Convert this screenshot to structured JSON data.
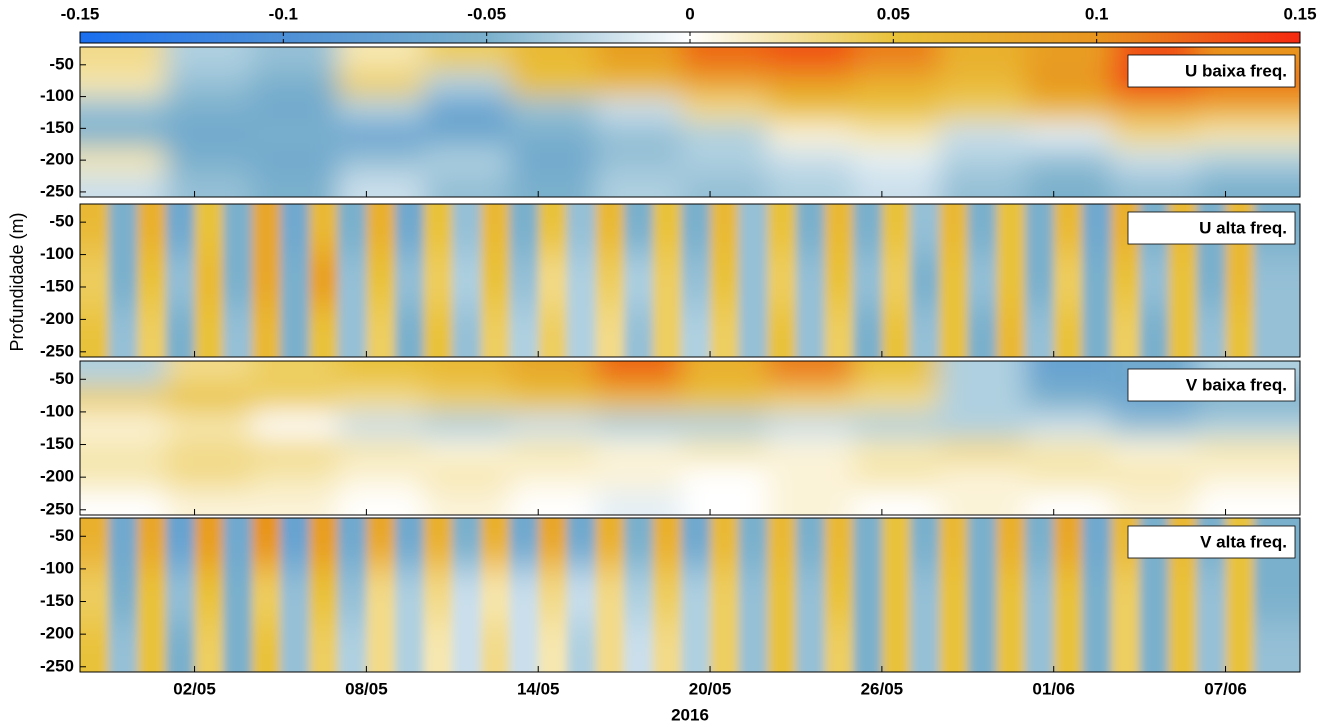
{
  "chart_data": {
    "type": "heatmap",
    "ylabel": "Profundidade (m)",
    "xlabel": "2016",
    "colorbar": {
      "lim": [
        -0.15,
        0.15
      ],
      "ticks": [
        -0.15,
        -0.1,
        -0.05,
        0,
        0.05,
        0.1,
        0.15
      ],
      "colors": [
        "#1a6ff0",
        "#4d8fd6",
        "#7ab0cc",
        "#ffffff",
        "#e9c23a",
        "#e8951f",
        "#f5280f"
      ]
    },
    "xlim": [
      119,
      161.6
    ],
    "xticks": [
      {
        "value": 123,
        "label": "02/05"
      },
      {
        "value": 129,
        "label": "08/05"
      },
      {
        "value": 135,
        "label": "14/05"
      },
      {
        "value": 141,
        "label": "20/05"
      },
      {
        "value": 147,
        "label": "26/05"
      },
      {
        "value": 153,
        "label": "01/06"
      },
      {
        "value": 159,
        "label": "07/06"
      }
    ],
    "ylim": [
      -258,
      -22
    ],
    "yticks": [
      -50,
      -100,
      -150,
      -200,
      -250
    ],
    "panels": [
      {
        "label": "U baixa freq.",
        "x": [
          120.5,
          123.5,
          126.5,
          129.5,
          132.5,
          135.5,
          138.5,
          141.5,
          144.5,
          147.5,
          150.5,
          153.5,
          156.5,
          159.5
        ],
        "y": [
          -40,
          -80,
          -120,
          -160,
          -200,
          -240
        ],
        "z": [
          [
            0.03,
            -0.03,
            -0.04,
            0.02,
            0.04,
            0.06,
            0.09,
            0.12,
            0.13,
            0.11,
            0.07,
            0.09,
            0.13,
            0.1
          ],
          [
            0.02,
            -0.04,
            -0.05,
            0.04,
            -0.03,
            0.05,
            0.06,
            0.08,
            0.09,
            0.07,
            0.06,
            0.1,
            0.14,
            0.12
          ],
          [
            -0.04,
            -0.05,
            -0.06,
            -0.03,
            -0.07,
            -0.04,
            -0.02,
            0.03,
            0.05,
            0.05,
            0.04,
            0.06,
            0.08,
            0.07
          ],
          [
            -0.05,
            -0.06,
            -0.05,
            -0.07,
            -0.06,
            -0.05,
            -0.04,
            -0.03,
            0.01,
            0.02,
            -0.02,
            -0.01,
            0.03,
            0.02
          ],
          [
            0.02,
            -0.05,
            -0.06,
            -0.04,
            -0.03,
            -0.06,
            -0.04,
            -0.03,
            -0.02,
            -0.01,
            -0.03,
            -0.04,
            -0.02,
            -0.03
          ],
          [
            -0.02,
            -0.04,
            -0.05,
            -0.02,
            -0.04,
            -0.05,
            -0.03,
            -0.04,
            -0.03,
            -0.02,
            -0.04,
            -0.05,
            -0.04,
            -0.05
          ]
        ]
      },
      {
        "label": "U alta freq.",
        "x": [
          119.5,
          120.5,
          121.5,
          122.5,
          123.5,
          124.5,
          125.5,
          126.5,
          127.5,
          128.5,
          129.5,
          130.5,
          131.5,
          132.5,
          133.5,
          134.5,
          135.5,
          136.5,
          137.5,
          138.5,
          139.5,
          140.5,
          141.5,
          142.5,
          143.5,
          144.5,
          145.5,
          146.5,
          147.5,
          148.5,
          149.5,
          150.5,
          151.5,
          152.5,
          153.5,
          154.5,
          155.5,
          156.5,
          157.5,
          158.5,
          159.5,
          160.5
        ],
        "y": [
          -60,
          -140,
          -220
        ],
        "z": [
          [
            0.06,
            -0.05,
            0.07,
            -0.06,
            0.05,
            -0.05,
            0.08,
            -0.06,
            0.06,
            -0.05,
            0.07,
            -0.06,
            0.05,
            -0.04,
            0.06,
            -0.05,
            0.05,
            -0.04,
            0.06,
            -0.05,
            0.05,
            -0.05,
            0.06,
            -0.04,
            0.05,
            -0.05,
            0.06,
            -0.05,
            0.05,
            -0.04,
            0.06,
            -0.05,
            0.05,
            -0.05,
            0.06,
            -0.06,
            0.07,
            -0.05,
            0.06,
            -0.05,
            0.06,
            -0.05
          ],
          [
            0.04,
            -0.05,
            0.05,
            -0.04,
            0.06,
            -0.05,
            0.08,
            -0.05,
            0.09,
            -0.04,
            0.05,
            -0.04,
            0.04,
            -0.03,
            0.05,
            -0.04,
            0.03,
            -0.03,
            0.04,
            -0.03,
            0.04,
            -0.04,
            0.05,
            -0.04,
            0.04,
            -0.04,
            0.05,
            -0.04,
            0.04,
            -0.05,
            0.05,
            -0.04,
            0.05,
            -0.05,
            0.04,
            -0.05,
            0.05,
            -0.04,
            0.05,
            -0.05,
            0.06,
            -0.04
          ],
          [
            0.05,
            -0.04,
            0.04,
            -0.05,
            0.05,
            -0.04,
            0.06,
            -0.05,
            0.05,
            -0.04,
            0.04,
            -0.05,
            0.05,
            -0.04,
            0.04,
            -0.03,
            0.04,
            -0.03,
            0.03,
            -0.04,
            0.04,
            -0.03,
            0.04,
            -0.04,
            0.05,
            -0.04,
            0.04,
            -0.05,
            0.05,
            -0.04,
            0.05,
            -0.05,
            0.06,
            -0.04,
            0.05,
            -0.05,
            0.04,
            -0.05,
            0.05,
            -0.04,
            0.05,
            -0.04
          ]
        ]
      },
      {
        "label": "V baixa freq.",
        "x": [
          120.5,
          123.5,
          126.5,
          129.5,
          132.5,
          135.5,
          138.5,
          141.5,
          144.5,
          147.5,
          150.5,
          153.5,
          156.5,
          159.5
        ],
        "y": [
          -40,
          -80,
          -120,
          -160,
          -200,
          -240
        ],
        "z": [
          [
            -0.03,
            0.03,
            0.04,
            0.05,
            0.06,
            0.08,
            0.12,
            0.07,
            0.11,
            0.05,
            -0.03,
            -0.07,
            -0.06,
            -0.03
          ],
          [
            0.04,
            0.05,
            0.04,
            0.03,
            0.04,
            0.05,
            0.06,
            0.05,
            0.04,
            0.03,
            -0.03,
            -0.05,
            -0.07,
            -0.05
          ],
          [
            0.01,
            0.02,
            0,
            -0.02,
            -0.03,
            -0.02,
            -0.03,
            -0.03,
            -0.02,
            -0.03,
            -0.03,
            -0.02,
            -0.04,
            -0.03
          ],
          [
            0.02,
            0.03,
            0.03,
            0.02,
            0.01,
            0.02,
            0.01,
            0.02,
            0.01,
            0.02,
            0.03,
            0.02,
            0.01,
            0.02
          ],
          [
            0.02,
            0.03,
            0.02,
            0.01,
            0.02,
            0.01,
            0.01,
            0,
            0.01,
            0.02,
            0.01,
            0.02,
            0.02,
            0.01
          ],
          [
            0,
            0.01,
            0.01,
            0,
            0.01,
            0,
            -0.01,
            0,
            0.01,
            0,
            0.01,
            0,
            0.01,
            0
          ]
        ]
      },
      {
        "label": "V alta freq.",
        "x": [
          119.5,
          120.5,
          121.5,
          122.5,
          123.5,
          124.5,
          125.5,
          126.5,
          127.5,
          128.5,
          129.5,
          130.5,
          131.5,
          132.5,
          133.5,
          134.5,
          135.5,
          136.5,
          137.5,
          138.5,
          139.5,
          140.5,
          141.5,
          142.5,
          143.5,
          144.5,
          145.5,
          146.5,
          147.5,
          148.5,
          149.5,
          150.5,
          151.5,
          152.5,
          153.5,
          154.5,
          155.5,
          156.5,
          157.5,
          158.5,
          159.5,
          160.5
        ],
        "y": [
          -60,
          -140,
          -220
        ],
        "z": [
          [
            0.07,
            -0.06,
            0.08,
            -0.07,
            0.09,
            -0.06,
            0.1,
            -0.07,
            0.09,
            -0.06,
            0.08,
            -0.06,
            0.07,
            -0.05,
            0.07,
            -0.06,
            0.08,
            -0.06,
            0.07,
            -0.05,
            0.07,
            -0.06,
            0.06,
            -0.05,
            0.06,
            -0.05,
            0.06,
            -0.05,
            0.05,
            -0.05,
            0.06,
            -0.05,
            0.07,
            -0.05,
            0.08,
            -0.06,
            0.06,
            -0.05,
            0.06,
            -0.05,
            0.05,
            -0.05
          ],
          [
            0.04,
            -0.05,
            0.05,
            -0.04,
            0.05,
            -0.05,
            0.04,
            -0.04,
            0.05,
            -0.04,
            0.03,
            -0.03,
            0.03,
            -0.02,
            0.02,
            -0.02,
            0.03,
            -0.02,
            0.03,
            -0.03,
            0.04,
            -0.03,
            0.04,
            -0.04,
            0.05,
            -0.04,
            0.05,
            -0.05,
            0.05,
            -0.04,
            0.05,
            -0.05,
            0.05,
            -0.04,
            0.05,
            -0.05,
            0.04,
            -0.05,
            0.05,
            -0.04,
            0.05,
            -0.05
          ],
          [
            0.05,
            -0.04,
            0.05,
            -0.05,
            0.04,
            -0.05,
            0.05,
            -0.04,
            0.04,
            -0.03,
            0.03,
            -0.03,
            0.02,
            -0.02,
            0.03,
            -0.02,
            0.02,
            -0.03,
            0.03,
            -0.02,
            0.03,
            -0.03,
            0.04,
            -0.04,
            0.05,
            -0.04,
            0.04,
            -0.05,
            0.05,
            -0.04,
            0.05,
            -0.05,
            0.05,
            -0.04,
            0.05,
            -0.05,
            0.04,
            -0.05,
            0.05,
            -0.04,
            0.05,
            -0.04
          ]
        ]
      }
    ]
  }
}
